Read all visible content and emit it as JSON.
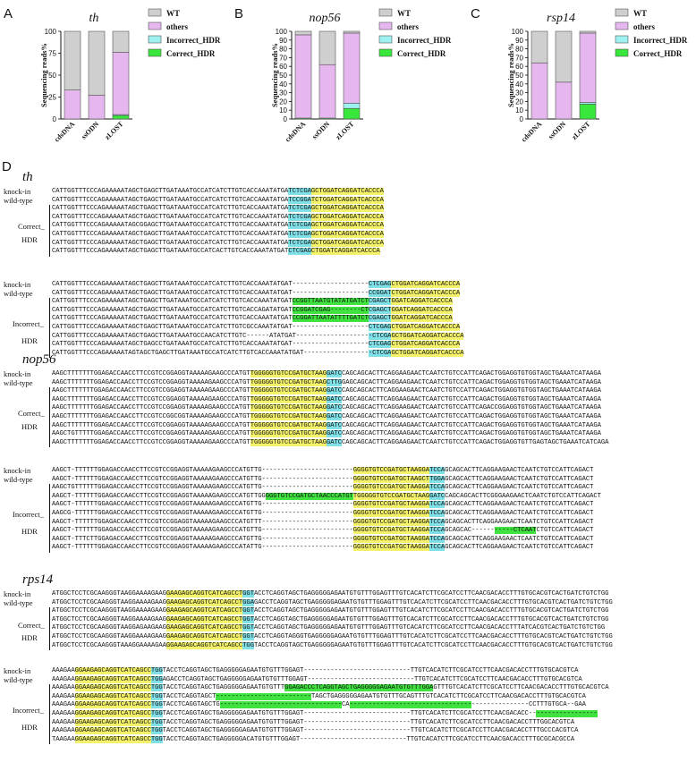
{
  "panels": [
    {
      "letter": "A",
      "title": "th"
    },
    {
      "letter": "B",
      "title": "nop56"
    },
    {
      "letter": "C",
      "title": "rsp14"
    }
  ],
  "panel_d_letter": "D",
  "colors": {
    "WT": "#cfcfcf",
    "others": "#e6b6ee",
    "Incorrect_HDR": "#9ff0f0",
    "Correct_HDR": "#39e63c",
    "yellow": "#f4f26a",
    "cyan": "#7fe0e8",
    "green": "#3fe23f"
  },
  "chart_data": [
    {
      "type": "bar",
      "title": "th",
      "ylabel": "Sequencing reads%",
      "ylim": [
        0,
        100
      ],
      "yticks": [
        0,
        25,
        50,
        75,
        100
      ],
      "categories": [
        "cdsDNA",
        "ssODN",
        "zLOST"
      ],
      "series": [
        {
          "name": "WT",
          "values": [
            67,
            73,
            24
          ]
        },
        {
          "name": "others",
          "values": [
            33,
            27,
            71
          ]
        },
        {
          "name": "Incorrect_HDR",
          "values": [
            0,
            0,
            1
          ]
        },
        {
          "name": "Correct_HDR",
          "values": [
            0,
            0,
            4
          ]
        }
      ],
      "legend": "right"
    },
    {
      "type": "bar",
      "title": "nop56",
      "ylabel": "Sequencing reads%",
      "ylim": [
        0,
        100
      ],
      "yticks": [
        0,
        10,
        20,
        30,
        40,
        50,
        60,
        70,
        80,
        90,
        100
      ],
      "categories": [
        "cdsDNA",
        "ssODN",
        "zLOST"
      ],
      "series": [
        {
          "name": "WT",
          "values": [
            4,
            38,
            2
          ]
        },
        {
          "name": "others",
          "values": [
            95,
            61,
            80
          ]
        },
        {
          "name": "Incorrect_HDR",
          "values": [
            0,
            0,
            6
          ]
        },
        {
          "name": "Correct_HDR",
          "values": [
            1,
            1,
            12
          ]
        }
      ],
      "legend": "right"
    },
    {
      "type": "bar",
      "title": "rsp14",
      "ylabel": "Sequencing reads%",
      "ylim": [
        0,
        100
      ],
      "yticks": [
        0,
        10,
        20,
        30,
        40,
        50,
        60,
        70,
        80,
        90,
        100
      ],
      "categories": [
        "cdsDNA",
        "ssODN",
        "zLOST"
      ],
      "series": [
        {
          "name": "WT",
          "values": [
            36,
            58,
            2
          ]
        },
        {
          "name": "others",
          "values": [
            64,
            42,
            79
          ]
        },
        {
          "name": "Incorrect_HDR",
          "values": [
            0,
            0,
            2
          ]
        },
        {
          "name": "Correct_HDR",
          "values": [
            0,
            0,
            17
          ]
        }
      ],
      "legend": "right"
    }
  ],
  "sequences": {
    "th_title": "th",
    "nop56_title": "nop56",
    "rps14_title": "rps14",
    "labels": {
      "knockin": "knock-in",
      "wildtype": "wild-type",
      "correct1": "Correct_",
      "correct2": "HDR",
      "incorrect1": "Incorrect_",
      "incorrect2": "HDR"
    },
    "th_block1": [
      "CATTGGTTTCCCAGAAAAATAGCTGAGCTTGATAAATGCCATCATCTTGTCACCAAATATGATCTCGAGCTGGATCAGGATCACCCA",
      "CATTGGTTTCCCAGAAAAATAGCTGAGCTTGATAAATGCCATCATCTTGTCACCAAATATGATCCGGATCTGGATCAGGATCACCCA",
      "CATTGGTTTCCCAGAAAAATAGCTGAGCTTGATAAATGCCATCATCTTGTCACCAAATATGATCTCGAGCTGGATCAGGATCACCCA",
      "CATTGGTTTCCCAGAAAAATAGCTGAGCTTGATAAATGCCATCATCTTGTCACCAAATATGATCTCGAGCTGGATCAGGATCACCCA",
      "CATTGGTTTCCCAGAAAAATAGCGGAGCTTGATAAATGCCATCATCTTGTCACCAAATATGATCTCGAGCTGGATCAGGATCACCCA",
      "CATTGGTTTCCCAGAAAAATAGCTGAGCTTGATAAATGCCATCATCTTGTCACCAAATATGATCTCGAGCTGGATCAGGATCACCCA",
      "CATTGGTTTCCCAGAAAAATAGCTGAGCTTGATAAATGCCATCATCTTGTCACCAAATATGATCTCGAGCTGGATCAGGATCACCCA",
      "CATTGGTTTCCCAGAAAAATAGCTGAGCTTGATAAATGCCATCACTTGTCACCAAATATGATCTCGAGCTGGATCAGGATCACCCA"
    ],
    "th_block2": [
      "CATTGGTTTCCCAGAAAAATAGCTGAGCTTGATAAATGCCATCATCTTGTCACCAAATATGAT--------------------CTCGAGCTGGATCAGGATCACCCA",
      "CATTGGTTTCCCAGAAAAATAGCTGAGCTTGATAAATGCCATCATCTTGTCACCAAATATGAT--------------------CCGGATCTGGATCAGGATCACCCA",
      "CATTGGTTTCCCAGAAAAATAGCTGAGCTTGATAAATGCCATCATCTTGTCACCAAATATGATCCGGTTAATGTATATGATCTCGAGCTGGATCAGGATCACCCA",
      "CATTGGTTTCCCAGAAAAATAGCTGAGCTTGATAAATGCCATCATCTTGTCACCAGATATGATCCGGATCGAG--------CTCGAGCTGGATCAGGATCACCCA",
      "CATTGGTTTCCCAGAAAAATAGCTGAGCTTGATAAATGCCATCATCTTGTCACCAAATATGATCCGGATTAATATTTTGATCTCGAGCTGGATCAGGATCACCCA",
      "CATTGGTTTCCCAGAAAAATAGCTGAGCTTGATAAATGCCATCATCTTGTCGCCAAATATGAT--------------------CTCGAGCTGGATCAGGATCACCCA",
      "CATTGGTTTCCCAGAAAAATAGCTGAGCTTGATAAATGCCAACATCTTGTC------ATATGAT--------------------CTCGAGCTGGATCAGGATCACCCA",
      "CATTGGTTTCCCAGAAAAATAGCTGAGCCTGATAAATGCCATCATCTTGTCACCAAATATGAT--------------------CTCGAGCTGGATCAGGATCACCCA",
      "CATTGGTTTCCCAGAAAAATAGTAGCTGAGCTTGATAAATGCCATCATCTTGTCACCAAATATGAT------------------CTCGAGCTGGATCAGGATCACCCA"
    ],
    "nop56_block1": [
      "AAGCTTTTTTTGGAGACCAACCTTCCGTCCGGAGGTAAAAAGAAGCCCATGTTGGGGGTGTCCGATGCTAAGGATCCAGCAGCACTTCAGGAAGAACTCAATCTGTCCATTCAGACTGGAGGTGTGGTAGCTGAAATCATAAGA",
      "AAGCTTTTTTTGGAGACCAACCTTCCGTCCGGAGGTAAAAAGAAGCCCATGTTGGGGGTGTCCGATGCTAAGCTTGGAGCAGCACTTCAGGAAGAACTCAATCTGTCCATTCAGACTGGAGGTGTGGTAGCTGAAATCATAAGA",
      "AAGCTTTTTTTGGAGACCAACCTTCCGTCCGGAGGTAAAAAGAAGCCCATGTTGGGGGTGTCCGATGCTAAGGATCCAGCAGCACTTCAGGAAGAACTCAATCTGTCCATTCAGACTGGAGGTGTGGTAGCTGAAATCATAAGA",
      "AAGCTTTTTTTGGAGACCAACCTTCCGTCCGGAGGTAAAAAGAAGCCCATGTTGGGGGTGTCCGATGCTAAGGATCCAGCAGCACTTCAGGAAGAACTCAATCTGTCCATTCAGACTGGAGGTGTGGTAGCTGAAATCATAAGA",
      "AAGCTTTTTTTGGAGACCAACCTTCCGTCCGGAGGTAAAAAGAAGCCCATGTTGGGGGTGTCCGATGCTAAGGATCCAGCAGCACTTCAGGAAGAACTCAATCTGTCCATTCAGACCGGAGGTGTGGTAGCTGAAATCATAAGA",
      "AAGCTTTTTTTGGAGACCAACCTTCCGTCCGGCGGTAAAAAGAAGCCCATGTTGGGGGTGTCCGATGCTAAGGATCCAGCAGCACTTCAGGAAGAACTCAATCTGTCCATTCAGACTGGAGGTGTGGTAGCTGAAATCATAAGA",
      "AAGCTTTTTTTGGAGACCAACCTTCCGTCCGGAGGTAAAAAGAAGCCCATGTTGGGGGTGTCCGATGCTAAGGATCCAGCAGCACTTCAGGAAGAACTCAATCTGTCCATTCAGACTGGAGGTGTGGTAGCTGAAATCATAAGA",
      "AAGCTGTTTTTGGAGACCAACCTTCCGTCCGGAGGTAAAAAGAAGCCCATGTTGGGGGTGTCCGATGCTAAGGATCCAGCAGCACTTCAGGAAGAACTCAATCTGTCCATTCAGACTGGAGGTGTGGTAGCTGAAATCATAAGA",
      "AAGCTTTTTTTGGAGACCAACCTTCCGTCCGGAGGTAAAAAGAAGCCCATGTTGGGGGTGTCCGATGCTAAGGATCCAGCAGCACTTCAGGAAGAACTCAATCTGTCCATTCAGACTGGAGGTGTTGAGTAGCTGAAATCATCAGA"
    ],
    "nop56_block2": [
      "AAGCT-TTTTTTGGAGACCAACCTTCCGTCCGGAGGTAAAAAGAAGCCCATGTTG------------------------GGGGTGTCCGATGCTAAGGATCCAGCAGCACTTCAGGAAGAACTCAATCTGTCCATTCAGACT",
      "AAGCT-TTTTTTGGAGACCAACCTTCCGTCCGGAGGTAAAAAGAAGCCCATGTTG------------------------GGGGTGTCCGATGCTAAGCTTGGAGCAGCACTTCAGGAAGAACTCAATCTGTCCATTCAGACT",
      "AAGCTGTTTTTTGGAGACCAACCTTCCGTCCGGAGGTAAAAAGAAGCCCATGTTG------------------------GGGGTGTCCGATGCTAAGGATCCAGCAGCACTTCAGGAAGAACTCAATCTGTCCATTCAGACT",
      "AAGCT-TTTTTTGGAGACCAACCTTCCGTCCGGAGGTAAAAAGAAGCCCATGTTGGGGGTGTCCGATGCTAACCCATGTTGGGGGTGTCCGATGCTAAGGATCCAGCAGCACTTCGGGAAGAACTCAATCTGTCCATTCAGACT",
      "AAGCT-TTTTTTGGAGACCAACCTTCCGTCCGGAGGTAAAAAGAAGCCCATGTTG------------------------GGGGTGTCCGATGCTAAGGATCCAGCAGCACTTCAGGAAGAACTCAATCTGTCCATTCAGACT",
      "AAGCG-TTTTTTGGAGACCAACCTTCCGTCCGGAGGTAAAAAGAAGCCCATGTTG------------------------GGGGTGTCCGATGCTAAGGATCCAGCAGCACTTCAGGAAGAACTCAATCTGTCCATTCAGACT",
      "AAGCT-TTTTTTGGAGACCAACCTTCCGTCCGGAGGTAAAAAGAAGCCCATGTTT------------------------GGGGTGTCCGATGCTAAGGATCCAGCAGCACTTCAGGAAGAACTCAATCTGTCCATTCAGACT",
      "AAGCT-TTTTTTGGAGACCAACCTTCCGTCCGGAGGTAAAAAGAAGCCCATGTTG------------------------GGGGTGTCCGATGCTAAGGATCCAGCAGCAC-----------CTCAATCTGTCCATTCAGACT",
      "AAGCT-TTTCTTGGAGACCAACCTTCCGTCCGGAGGTAAAAAGAAGCCCATGTTG------------------------GGGGTGTCCGATGCTAAGGATCCAGCAGCACTTCAGGAAGAACTCAATCTGTCCATTCAGACT",
      "AAGCT-TTTTTTGGAGACCAACCTTCCGTCCGGAGGTAAAAAGAAGCCCATATTG------------------------GGGGTGTCCGATGCTAAGGATCCAGCAGCACTTCAGGAAGAACTCAATCTGTCCATTCAGACT"
    ],
    "rps14_block1": [
      "ATGGCTCCTCGCAAGGGTAAGGAAAAGAAGGAAGAGCAGGTCATCAGCCTGGTACCTCAGGTAGCTGAGGGGGAGAATGTGTTTGGAGTTTGTCACATCTTCGCATCCTTCAACGACACCTTTGTGCACGTCACTGATCTGTCTGG",
      "ATGGCTCCTCGCAAGGGTAAGGAAAAGAAGGAAGAGCAGGTCATCAGCCTGGAGACCTCAGGTAGCTGAGGGGGAGAATGTGTTTGGAGTTTGTCACATCTTCGCATCCTTCAACGACACCTTTGTGCACGTCACTGATCTGTCTGG",
      "ATGGCTCCTCGCAAGGGTAAGGAAAAGAAGGAAGAGCAGGTCATCAGCCTGGTACCTCAGGTAGCTGAGGGGGAGAATGTGTTTGGAGTTTGTCACATCTTCGCATCCTTCAACGACACCTTTGTGCACGTCACTGATCTGTCTGG",
      "ATGGCTCCTCGCAAGGGTAAGGAAAAGAAGGAAGAGCAGGTCATCAGCCTGGTACCTCAGGTAGCTGAGGGGGAGAATGTGTTTGGAGTTTGTCACATCTTCGCATCCTTCAACGACACCTTTGTGCACGTCACTGATCTGTCTGG",
      "ATGGCTCCTCGCAAGGGTAAGGAGAAGAAGGAAGAGCAGGTCATCAGCCTGGTACCTCAGGTAGCTGAGGGGGAGAATGTGTTTGGAGTTTGTCACATCTTCGCATCCTTCAACGACACCTTTATCACGTCACTGATCTGTCTGG",
      "ATGGCTCCTCGCAAGGGTAAGGAAAAGAAGGAAGAGCAGGTCATCAGCCTGGTACCTCAGGTAGGGTGAGGGGGAGAATGTGTTTGGAGTTTGTCACATCTTCGCATCCTTCAACGACACCTTTGTGCACGTCACTGATCTGTCTGG",
      "ATGGCTCCTCGCAAGGGTAAAGGAAAAGAAGGAAGAGCAGGTCATCAGCCTGGTACCTCAGGTAGCTGAGGGGGAGAATGTGTTTGGAGTTTGTCACATCTTCGCATCCTTCAACGACACCTTTGTGCACGTCACTGATCTGTCTGG"
    ],
    "rps14_block2": [
      "AAAGAAGGAAGAGCAGGTCATCAGCCTGGTACCTCAGGTAGCTGAGGGGGAGAATGTGTTTGGAGT----------------------------TTGTCACATCTTCGCATCCTTCAACGACACCTTTGTGCACGTCA",
      "AAAGAAGGAAGAGCAGGTCATCAGCCTGGAGACCTCAGGTAGCTGAGGGGGAGAATGTGTTTGGAGT----------------------------TTGTCACATCTTCGCATCCTTCAACGACACCTTTGTGCACGTCA",
      "AAAGAAGGAAGAGCAGGTCATCAGCCTGGTACCTCAGGTAGCTGAGGGGGAGAATGTGTTTGGAGACCCTCAGGTAGCTGAGGGGGAGAATGTGTTTGGAGTTTGTCACATCTTCGCATCCTTCAACGACACCTTTGTGCACGTCA",
      "AAAGAAGGAAGAGCAGGTCATCAGCCTGGTACCTCAGGTAGCT-------------------------TAGCTGAGGGGGAGAATGTGTTTGCAGTTTGTCACATCTTCGCATCCTTCAACGACACCTTTGTGCACGTCA",
      "AAAGAAGGAAGAGCAGGTCATCAGCCTGGTACCTCAGGTAGCTG--------------------------------CA-----------------------------------------------CCTTTGTGCA--GAA",
      "AAAGAAGGAAGAGCAGGTCATCAGCCTGGTACCTCAGGTAGCTGAGGGGGAGAATGTGTTTGGAGT----------------------------TTGTCACATCTTCGCATCCTTCAACGACACC------------------",
      "AAAGAAGGAAGAGCAGGTCATCAGCCTGGTACCTCAGGTAGCTGAGGGGGAGAATGTGTTTGGAGT----------------------------TTGTCACATCTTCGCATCCTTCAACGACACCTTTGGCACGTCA",
      "AAAGAAGGAAGAGCAGGTCATCAGCCTGGTACCTCAGGTAGCTGAGGGGGAGAATGTGTTTGGAGT----------------------------TTGTCACATCTTCGCATCCTTCAACGACACCTTTGCCCACGTCA",
      "TAAGAAGGAAGAGCAGGTCATCAGCCTGGTACCTCAGGTAGCTGAGGGGGACATGTGTTTGGAGT----------------------------TTGTCACATCTTCGCATCCTTCAACGACACCTTTGCGCACGCCA"
    ]
  }
}
